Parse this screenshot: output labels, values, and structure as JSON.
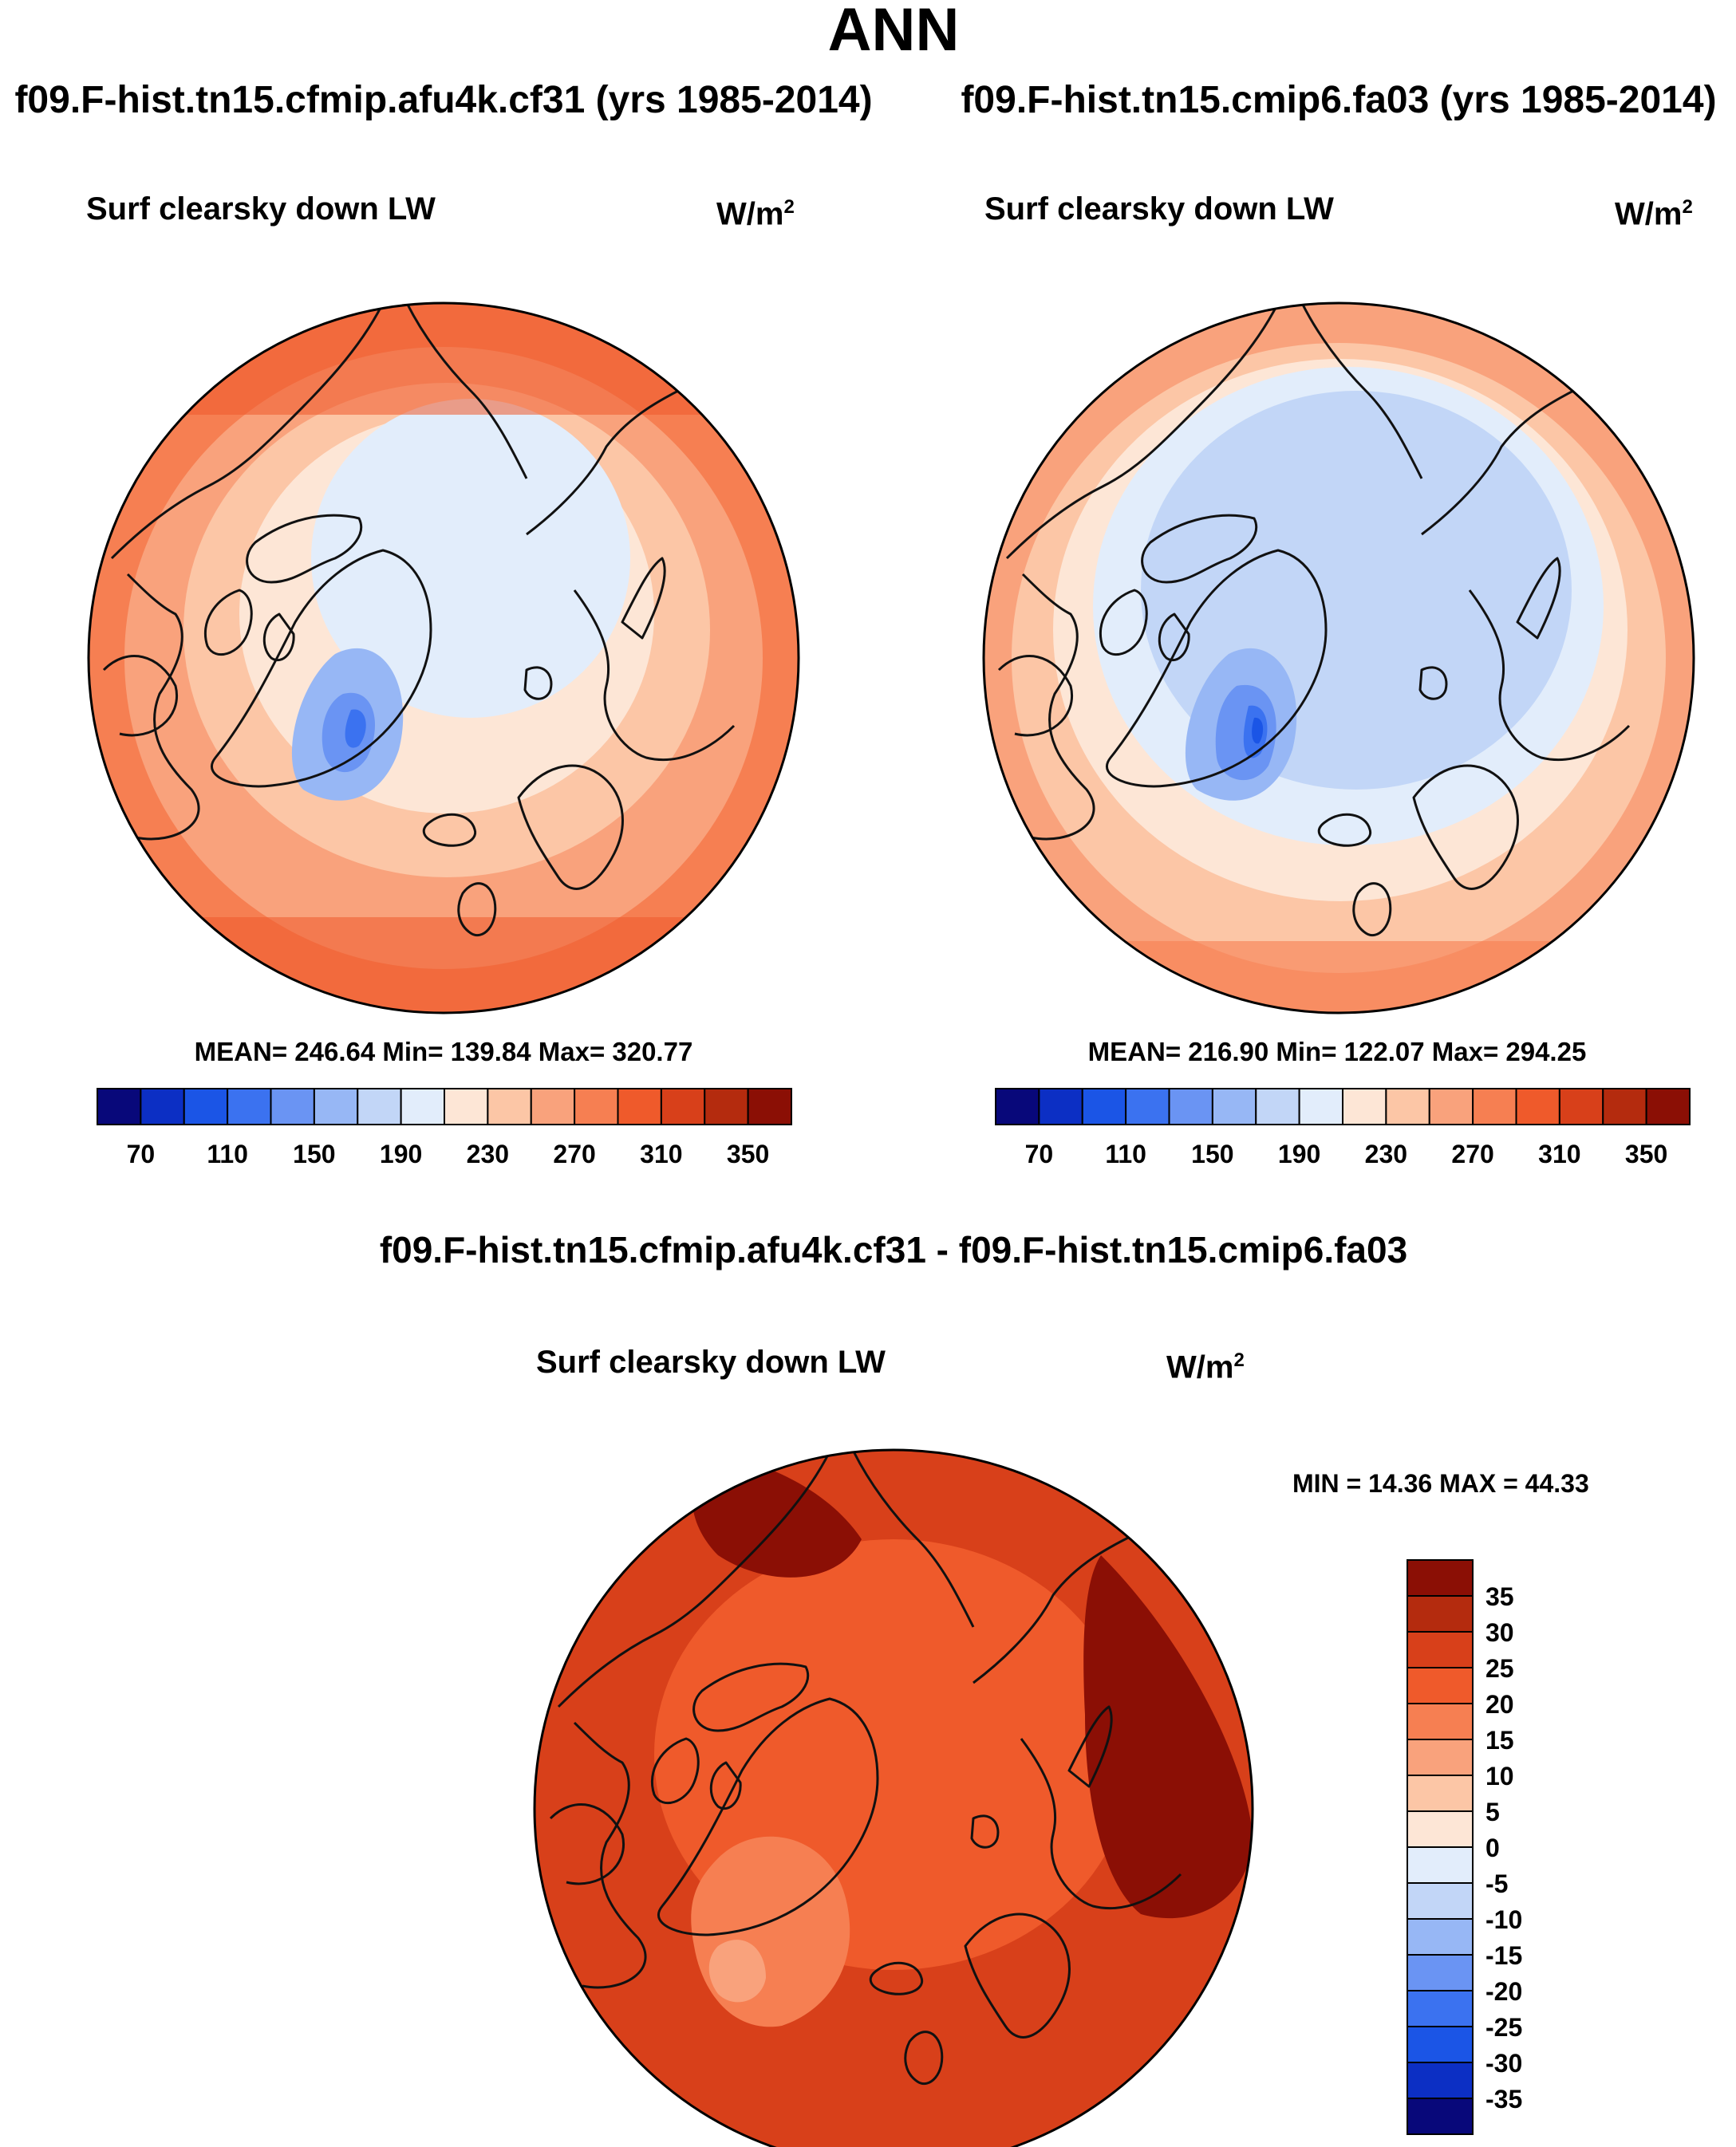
{
  "page": {
    "title": "ANN"
  },
  "panels": {
    "left": {
      "case_title": "f09.F-hist.tn15.cfmip.afu4k.cf31 (yrs 1985-2014)",
      "variable": "Surf clearsky down LW",
      "units_base": "W/m",
      "units_exp": "2",
      "stats": "MEAN= 246.64  Min= 139.84  Max= 320.77",
      "colorbar": {
        "colors": [
          "#08087a",
          "#0c2fc4",
          "#1b55e6",
          "#3b72f0",
          "#6a94f3",
          "#97b7f5",
          "#c2d6f7",
          "#e2edfb",
          "#fde6d6",
          "#fcc6a6",
          "#f9a27c",
          "#f67f52",
          "#ef5a2b",
          "#d8401a",
          "#b42b0e",
          "#8b0f05"
        ],
        "tick_labels": [
          "70",
          "110",
          "150",
          "190",
          "230",
          "270",
          "310",
          "350"
        ]
      }
    },
    "right": {
      "case_title": "f09.F-hist.tn15.cmip6.fa03 (yrs 1985-2014)",
      "variable": "Surf clearsky down LW",
      "units_base": "W/m",
      "units_exp": "2",
      "stats": "MEAN= 216.90  Min= 122.07  Max= 294.25",
      "colorbar": {
        "colors": [
          "#08087a",
          "#0c2fc4",
          "#1b55e6",
          "#3b72f0",
          "#6a94f3",
          "#97b7f5",
          "#c2d6f7",
          "#e2edfb",
          "#fde6d6",
          "#fcc6a6",
          "#f9a27c",
          "#f67f52",
          "#ef5a2b",
          "#d8401a",
          "#b42b0e",
          "#8b0f05"
        ],
        "tick_labels": [
          "70",
          "110",
          "150",
          "190",
          "230",
          "270",
          "310",
          "350"
        ]
      }
    },
    "diff": {
      "case_title": "f09.F-hist.tn15.cfmip.afu4k.cf31 - f09.F-hist.tn15.cmip6.fa03",
      "variable": "Surf clearsky down LW",
      "units_base": "W/m",
      "units_exp": "2",
      "stats": "MIN =  14.36 MAX =  44.33",
      "colorbar": {
        "colors_top_to_bottom": [
          "#8b0f05",
          "#b42b0e",
          "#d8401a",
          "#ef5a2b",
          "#f67f52",
          "#f9a27c",
          "#fcc6a6",
          "#fde6d6",
          "#e2edfb",
          "#c2d6f7",
          "#97b7f5",
          "#6a94f3",
          "#3b72f0",
          "#1b55e6",
          "#0c2fc4",
          "#08087a"
        ],
        "tick_labels": [
          "35",
          "30",
          "25",
          "20",
          "15",
          "10",
          "5",
          "0",
          "-5",
          "-10",
          "-15",
          "-20",
          "-25",
          "-30",
          "-35"
        ]
      }
    }
  },
  "colors": {
    "coastline": "#111111",
    "border": "#000000"
  }
}
